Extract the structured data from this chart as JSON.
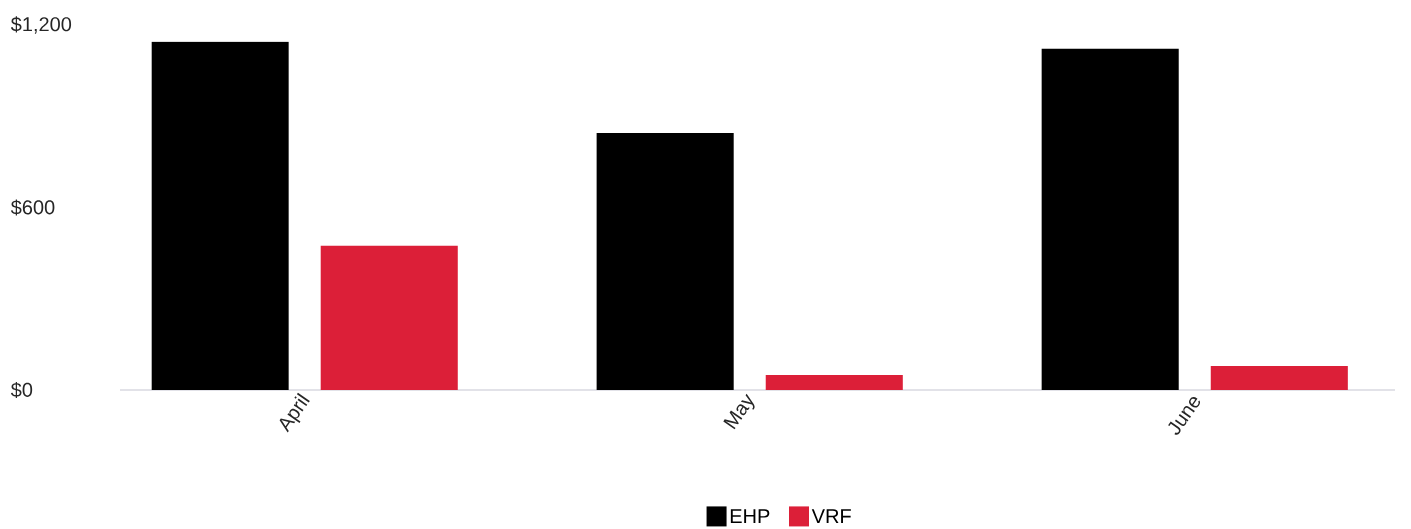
{
  "chart_data": {
    "type": "bar",
    "categories": [
      "April",
      "May",
      "June"
    ],
    "series": [
      {
        "name": "EHP",
        "color": "#000000",
        "values": [
          1145,
          845,
          1122
        ]
      },
      {
        "name": "VRF",
        "color": "#dc1f38",
        "values": [
          474,
          49,
          79
        ]
      }
    ],
    "ylim": [
      0,
      1200
    ],
    "yticks": [
      {
        "value": 0,
        "label": "$0"
      },
      {
        "value": 600,
        "label": "$600"
      },
      {
        "value": 1200,
        "label": "$1,200"
      }
    ],
    "legend": "bottom"
  }
}
